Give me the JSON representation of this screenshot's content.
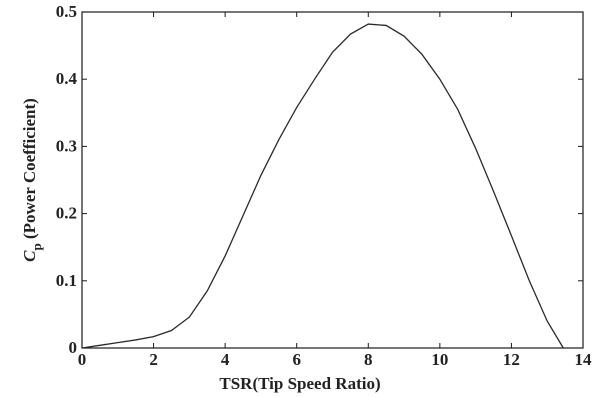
{
  "chart_data": {
    "type": "line",
    "title": "",
    "xlabel": "TSR(Tip Speed Ratio)",
    "ylabel_main": "C",
    "ylabel_sub": "p",
    "ylabel_rest": " (Power Coefficient)",
    "xlim": [
      0,
      14
    ],
    "ylim": [
      0,
      0.5
    ],
    "x_ticks": [
      "0",
      "2",
      "4",
      "6",
      "8",
      "10",
      "12",
      "14"
    ],
    "y_ticks": [
      "0",
      "0.1",
      "0.2",
      "0.3",
      "0.4",
      "0.5"
    ],
    "grid": false,
    "series": [
      {
        "x": [
          0,
          0.5,
          1,
          1.5,
          2,
          2.5,
          3,
          3.5,
          4,
          4.5,
          5,
          5.5,
          6,
          6.5,
          7,
          7.5,
          8,
          8.5,
          9,
          9.5,
          10,
          10.5,
          11,
          11.5,
          12,
          12.5,
          13,
          13.45
        ],
        "y": [
          0,
          0.004,
          0.008,
          0.012,
          0.017,
          0.026,
          0.046,
          0.085,
          0.137,
          0.197,
          0.257,
          0.31,
          0.358,
          0.4,
          0.44,
          0.467,
          0.482,
          0.48,
          0.464,
          0.437,
          0.4,
          0.355,
          0.297,
          0.233,
          0.167,
          0.1,
          0.04,
          0
        ]
      }
    ]
  }
}
